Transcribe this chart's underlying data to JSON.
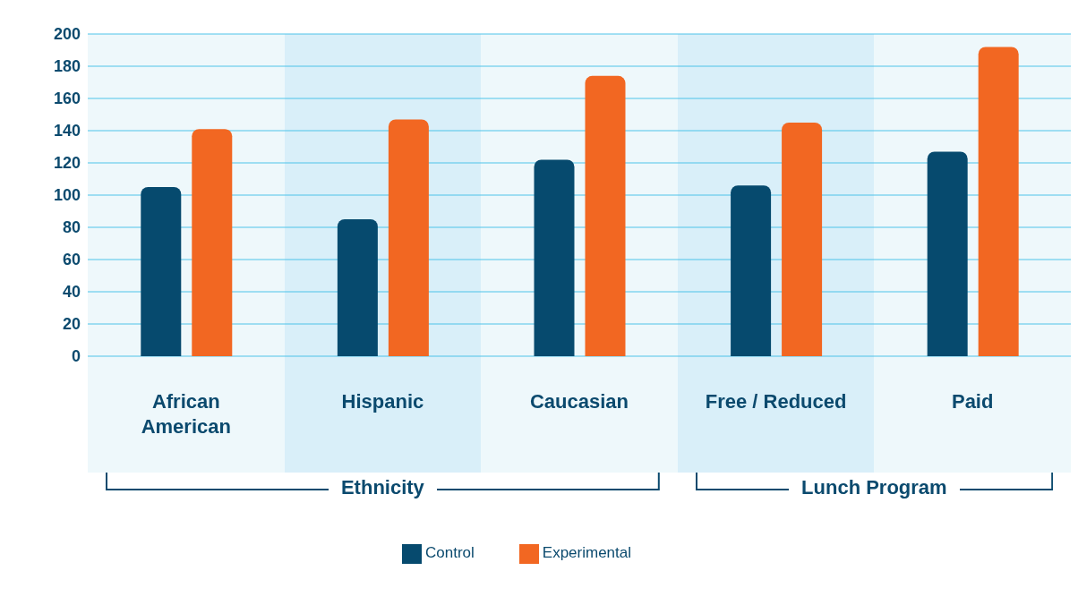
{
  "chart_data": {
    "type": "bar",
    "categories": [
      "African American",
      "Hispanic",
      "Caucasian",
      "Free / Reduced",
      "Paid"
    ],
    "series": [
      {
        "name": "Control",
        "color": "#064a6e",
        "values": [
          105,
          85,
          122,
          106,
          127
        ]
      },
      {
        "name": "Experimental",
        "color": "#f26722",
        "values": [
          141,
          147,
          174,
          145,
          192
        ]
      }
    ],
    "ylim": [
      0,
      200
    ],
    "yticks": [
      0,
      20,
      40,
      60,
      80,
      100,
      120,
      140,
      160,
      180,
      200
    ],
    "grid": "y",
    "legend": "bottom",
    "annotations": [
      "Ethnicity",
      "Lunch Program"
    ]
  }
}
